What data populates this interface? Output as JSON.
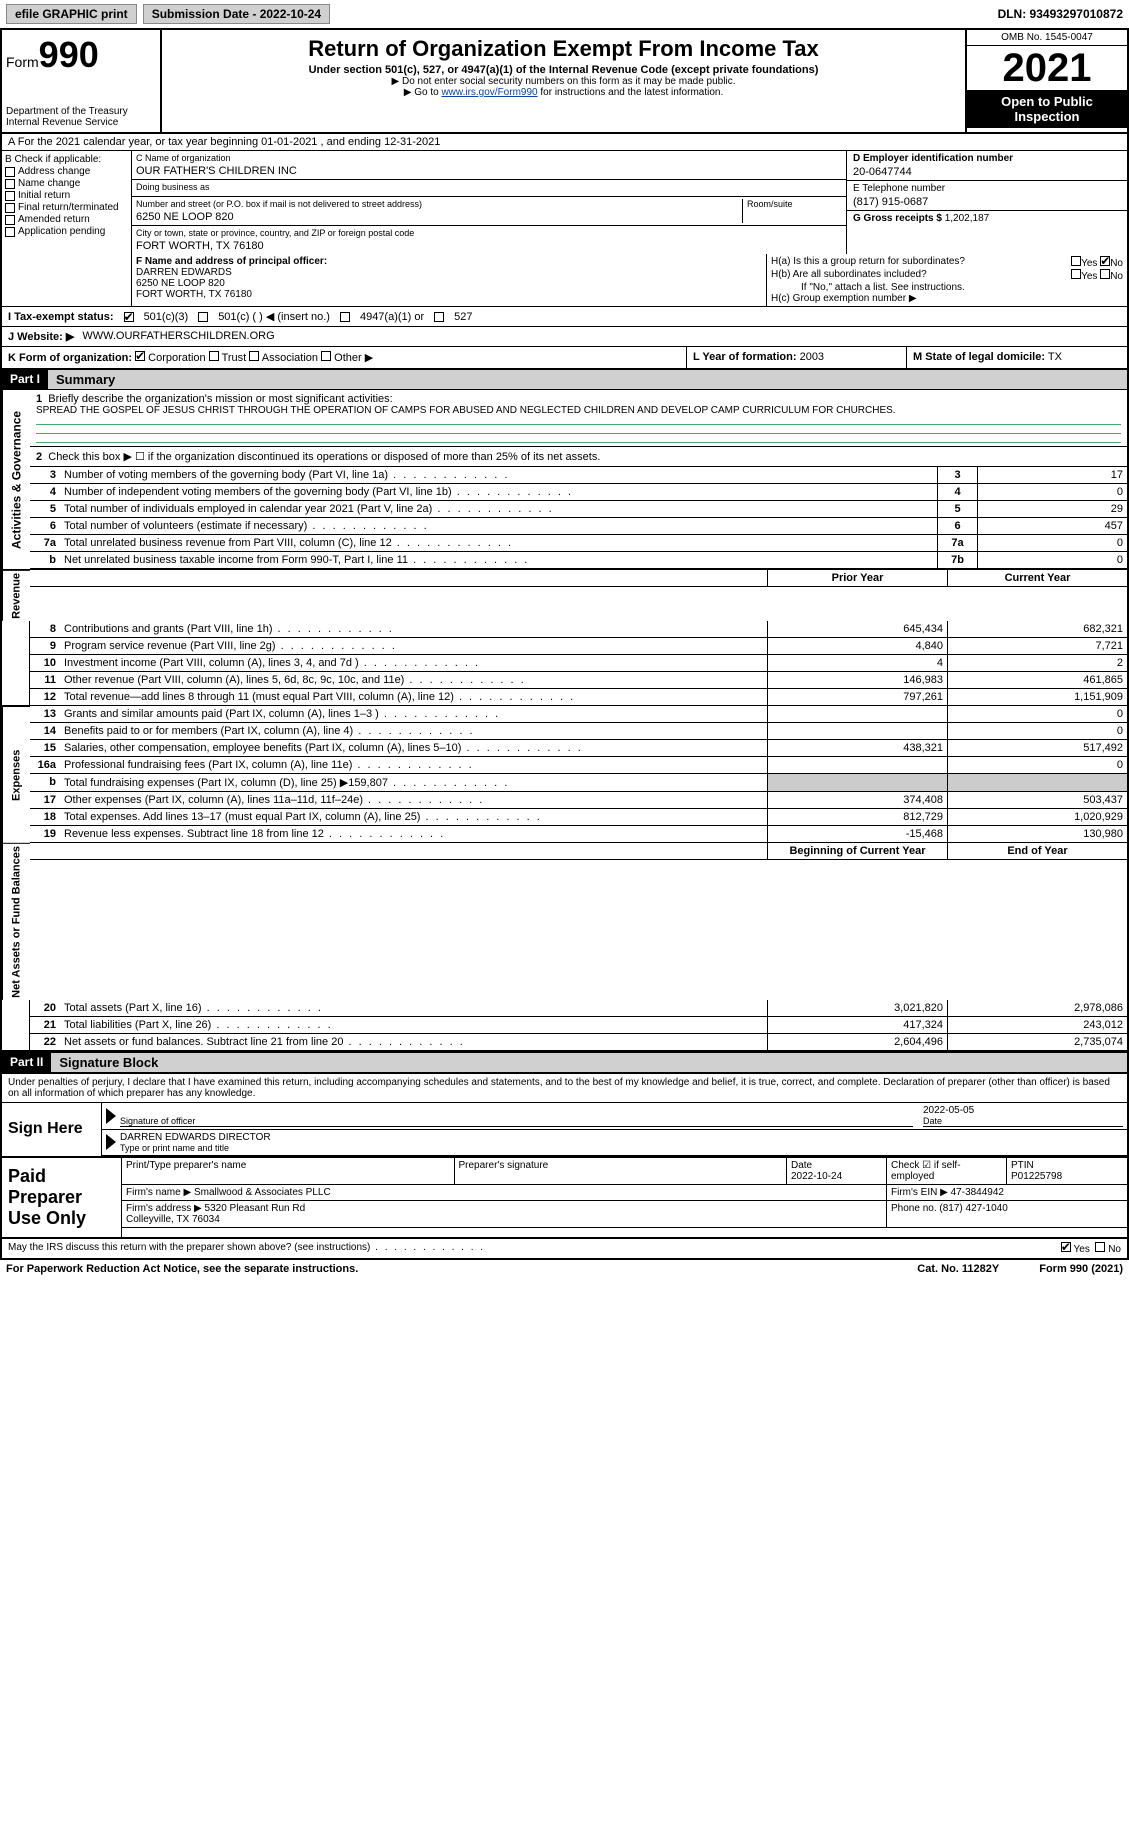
{
  "topbar": {
    "efile": "efile GRAPHIC print",
    "submission_label": "Submission Date - 2022-10-24",
    "dln_label": "DLN: 93493297010872"
  },
  "header": {
    "form_prefix": "Form",
    "form_number": "990",
    "dept": "Department of the Treasury\nInternal Revenue Service",
    "title": "Return of Organization Exempt From Income Tax",
    "subtitle": "Under section 501(c), 527, or 4947(a)(1) of the Internal Revenue Code (except private foundations)",
    "note1": "▶ Do not enter social security numbers on this form as it may be made public.",
    "note2_pre": "▶ Go to ",
    "note2_link": "www.irs.gov/Form990",
    "note2_post": " for instructions and the latest information.",
    "omb": "OMB No. 1545-0047",
    "year": "2021",
    "otp": "Open to Public Inspection"
  },
  "lineA": "A For the 2021 calendar year, or tax year beginning 01-01-2021   , and ending 12-31-2021",
  "B": {
    "label": "B Check if applicable:",
    "items": [
      "Address change",
      "Name change",
      "Initial return",
      "Final return/terminated",
      "Amended return",
      "Application pending"
    ]
  },
  "C": {
    "name_label": "C Name of organization",
    "name": "OUR FATHER'S CHILDREN INC",
    "dba_label": "Doing business as",
    "dba": "",
    "street_label": "Number and street (or P.O. box if mail is not delivered to street address)",
    "room_label": "Room/suite",
    "street": "6250 NE LOOP 820",
    "city_label": "City or town, state or province, country, and ZIP or foreign postal code",
    "city": "FORT WORTH, TX  76180"
  },
  "D": {
    "label": "D Employer identification number",
    "value": "20-0647744"
  },
  "E": {
    "label": "E Telephone number",
    "value": "(817) 915-0687"
  },
  "G": {
    "label": "G Gross receipts $",
    "value": "1,202,187"
  },
  "F": {
    "label": "F  Name and address of principal officer:",
    "name": "DARREN EDWARDS",
    "street": "6250 NE LOOP 820",
    "city": "FORT WORTH, TX  76180"
  },
  "H": {
    "a": "H(a)  Is this a group return for subordinates?",
    "b": "H(b)  Are all subordinates included?",
    "b_note": "If \"No,\" attach a list. See instructions.",
    "c": "H(c)  Group exemption number ▶"
  },
  "I": {
    "label": "I   Tax-exempt status:",
    "o501c3": "501(c)(3)",
    "o501c": "501(c) (  ) ◀ (insert no.)",
    "o4947": "4947(a)(1) or",
    "o527": "527"
  },
  "J": {
    "label": "J   Website: ▶",
    "value": "WWW.OURFATHERSCHILDREN.ORG"
  },
  "K": {
    "label": "K Form of organization:",
    "corp": "Corporation",
    "trust": "Trust",
    "assoc": "Association",
    "other": "Other ▶"
  },
  "L": {
    "label": "L Year of formation:",
    "value": "2003"
  },
  "M": {
    "label": "M State of legal domicile:",
    "value": "TX"
  },
  "part1": {
    "tag": "Part I",
    "title": "Summary",
    "q1": "Briefly describe the organization's mission or most significant activities:",
    "mission": "SPREAD THE GOSPEL OF JESUS CHRIST THROUGH THE OPERATION OF CAMPS FOR ABUSED AND NEGLECTED CHILDREN AND DEVELOP CAMP CURRICULUM FOR CHURCHES.",
    "q2": "Check this box ▶ ☐  if the organization discontinued its operations or disposed of more than 25% of its net assets.",
    "lines": [
      {
        "n": "3",
        "d": "Number of voting members of the governing body (Part VI, line 1a)",
        "box": "3",
        "v": "17"
      },
      {
        "n": "4",
        "d": "Number of independent voting members of the governing body (Part VI, line 1b)",
        "box": "4",
        "v": "0"
      },
      {
        "n": "5",
        "d": "Total number of individuals employed in calendar year 2021 (Part V, line 2a)",
        "box": "5",
        "v": "29"
      },
      {
        "n": "6",
        "d": "Total number of volunteers (estimate if necessary)",
        "box": "6",
        "v": "457"
      },
      {
        "n": "7a",
        "d": "Total unrelated business revenue from Part VIII, column (C), line 12",
        "box": "7a",
        "v": "0"
      },
      {
        "n": "b",
        "d": "Net unrelated business taxable income from Form 990-T, Part I, line 11",
        "box": "7b",
        "v": "0"
      }
    ],
    "col_prior": "Prior Year",
    "col_current": "Current Year",
    "revenue": [
      {
        "n": "8",
        "d": "Contributions and grants (Part VIII, line 1h)",
        "p": "645,434",
        "c": "682,321"
      },
      {
        "n": "9",
        "d": "Program service revenue (Part VIII, line 2g)",
        "p": "4,840",
        "c": "7,721"
      },
      {
        "n": "10",
        "d": "Investment income (Part VIII, column (A), lines 3, 4, and 7d )",
        "p": "4",
        "c": "2"
      },
      {
        "n": "11",
        "d": "Other revenue (Part VIII, column (A), lines 5, 6d, 8c, 9c, 10c, and 11e)",
        "p": "146,983",
        "c": "461,865"
      },
      {
        "n": "12",
        "d": "Total revenue—add lines 8 through 11 (must equal Part VIII, column (A), line 12)",
        "p": "797,261",
        "c": "1,151,909"
      }
    ],
    "expenses": [
      {
        "n": "13",
        "d": "Grants and similar amounts paid (Part IX, column (A), lines 1–3 )",
        "p": "",
        "c": "0"
      },
      {
        "n": "14",
        "d": "Benefits paid to or for members (Part IX, column (A), line 4)",
        "p": "",
        "c": "0"
      },
      {
        "n": "15",
        "d": "Salaries, other compensation, employee benefits (Part IX, column (A), lines 5–10)",
        "p": "438,321",
        "c": "517,492"
      },
      {
        "n": "16a",
        "d": "Professional fundraising fees (Part IX, column (A), line 11e)",
        "p": "",
        "c": "0"
      },
      {
        "n": "b",
        "d": "Total fundraising expenses (Part IX, column (D), line 25) ▶159,807",
        "p": "shade",
        "c": "shade"
      },
      {
        "n": "17",
        "d": "Other expenses (Part IX, column (A), lines 11a–11d, 11f–24e)",
        "p": "374,408",
        "c": "503,437"
      },
      {
        "n": "18",
        "d": "Total expenses. Add lines 13–17 (must equal Part IX, column (A), line 25)",
        "p": "812,729",
        "c": "1,020,929"
      },
      {
        "n": "19",
        "d": "Revenue less expenses. Subtract line 18 from line 12",
        "p": "-15,468",
        "c": "130,980"
      }
    ],
    "col_beg": "Beginning of Current Year",
    "col_end": "End of Year",
    "netassets": [
      {
        "n": "20",
        "d": "Total assets (Part X, line 16)",
        "p": "3,021,820",
        "c": "2,978,086"
      },
      {
        "n": "21",
        "d": "Total liabilities (Part X, line 26)",
        "p": "417,324",
        "c": "243,012"
      },
      {
        "n": "22",
        "d": "Net assets or fund balances. Subtract line 21 from line 20",
        "p": "2,604,496",
        "c": "2,735,074"
      }
    ],
    "vtabs": {
      "ag": "Activities & Governance",
      "rev": "Revenue",
      "exp": "Expenses",
      "na": "Net Assets or Fund Balances"
    }
  },
  "part2": {
    "tag": "Part II",
    "title": "Signature Block",
    "intro": "Under penalties of perjury, I declare that I have examined this return, including accompanying schedules and statements, and to the best of my knowledge and belief, it is true, correct, and complete. Declaration of preparer (other than officer) is based on all information of which preparer has any knowledge.",
    "sign_here": "Sign Here",
    "sig_officer": "Signature of officer",
    "sig_date": "2022-05-05",
    "date_label": "Date",
    "officer_name": "DARREN EDWARDS  DIRECTOR",
    "type_name": "Type or print name and title",
    "paid": "Paid Preparer Use Only",
    "pp_name_label": "Print/Type preparer's name",
    "pp_sig_label": "Preparer's signature",
    "pp_date_label": "Date",
    "pp_date": "2022-10-24",
    "pp_check_label": "Check ☑ if self-employed",
    "ptin_label": "PTIN",
    "ptin": "P01225798",
    "firm_name_label": "Firm's name    ▶",
    "firm_name": "Smallwood & Associates PLLC",
    "firm_ein_label": "Firm's EIN ▶",
    "firm_ein": "47-3844942",
    "firm_addr_label": "Firm's address ▶",
    "firm_addr": "5320 Pleasant Run Rd\nColleyville, TX  76034",
    "phone_label": "Phone no.",
    "phone": "(817) 427-1040",
    "irs_discuss": "May the IRS discuss this return with the preparer shown above? (see instructions)",
    "paperwork": "For Paperwork Reduction Act Notice, see the separate instructions.",
    "catno": "Cat. No. 11282Y",
    "formfoot": "Form 990 (2021)"
  },
  "yn": {
    "yes": "Yes",
    "no": "No"
  }
}
